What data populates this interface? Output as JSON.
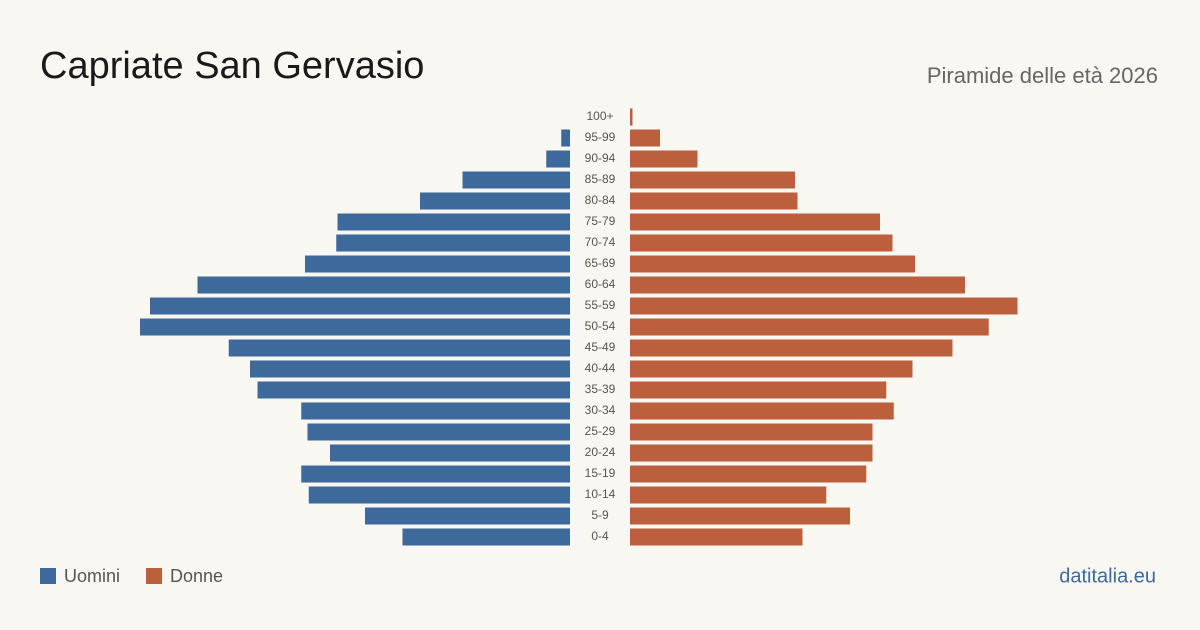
{
  "chart_data": {
    "type": "pyramid",
    "title": "Capriate San Gervasio",
    "subtitle": "Piramide delle età 2026",
    "source": "datitalia.eu",
    "categories": [
      "100+",
      "95-99",
      "90-94",
      "85-89",
      "80-84",
      "75-79",
      "70-74",
      "65-69",
      "60-64",
      "55-59",
      "50-54",
      "45-49",
      "40-44",
      "35-39",
      "30-34",
      "25-29",
      "20-24",
      "15-19",
      "10-14",
      "5-9",
      "0-4"
    ],
    "series": [
      {
        "name": "Uomini",
        "color": "#3d6a9b",
        "values": [
          0,
          7,
          19,
          86,
          120,
          186,
          187,
          212,
          298,
          336,
          344,
          273,
          256,
          250,
          215,
          210,
          192,
          215,
          209,
          164,
          134
        ]
      },
      {
        "name": "Donne",
        "color": "#bb5f3d",
        "values": [
          2,
          24,
          54,
          132,
          134,
          200,
          210,
          228,
          268,
          310,
          287,
          258,
          226,
          205,
          211,
          194,
          194,
          189,
          157,
          176,
          138
        ]
      }
    ],
    "xlim": [
      0,
      344
    ],
    "legend": "bottom-left"
  }
}
